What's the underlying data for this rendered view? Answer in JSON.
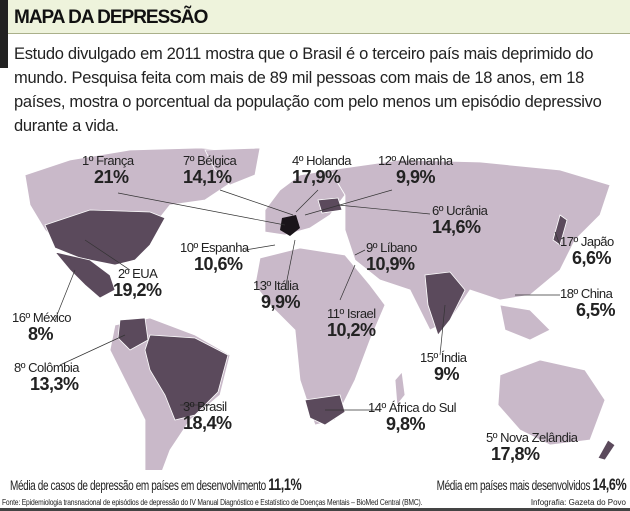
{
  "header": {
    "title": "MAPA DA DEPRESSÃO"
  },
  "intro": "Estudo divulgado em 2011 mostra que o Brasil é o terceiro país mais deprimido do mundo. Pesquisa feita com mais de 89 mil pessoas com mais de 18 anos, em 18 países, mostra o porcentual da população com pelo menos um episódio depressivo durante a vida.",
  "colors": {
    "header_bg": "#eef3dc",
    "land": "#c9b9c9",
    "highlight": "#5b4a5c",
    "france": "#1a141a"
  },
  "countries": [
    {
      "rank": "1º",
      "name": "França",
      "value": "21%"
    },
    {
      "rank": "2º",
      "name": "EUA",
      "value": "19,2%"
    },
    {
      "rank": "3º",
      "name": "Brasil",
      "value": "18,4%"
    },
    {
      "rank": "4º",
      "name": "Holanda",
      "value": "17,9%"
    },
    {
      "rank": "5º",
      "name": "Nova Zelândia",
      "value": "17,8%"
    },
    {
      "rank": "6º",
      "name": "Ucrânia",
      "value": "14,6%"
    },
    {
      "rank": "7º",
      "name": "Bélgica",
      "value": "14,1%"
    },
    {
      "rank": "8º",
      "name": "Colômbia",
      "value": "13,3%"
    },
    {
      "rank": "9º",
      "name": "Líbano",
      "value": "10,9%"
    },
    {
      "rank": "10º",
      "name": "Espanha",
      "value": "10,6%"
    },
    {
      "rank": "11º",
      "name": "Israel",
      "value": "10,2%"
    },
    {
      "rank": "12º",
      "name": "Alemanha",
      "value": "9,9%"
    },
    {
      "rank": "13º",
      "name": "Itália",
      "value": "9,9%"
    },
    {
      "rank": "14º",
      "name": "África do Sul",
      "value": "9,8%"
    },
    {
      "rank": "15º",
      "name": "Índia",
      "value": "9%"
    },
    {
      "rank": "16º",
      "name": "México",
      "value": "8%"
    },
    {
      "rank": "17º",
      "name": "Japão",
      "value": "6,6%"
    },
    {
      "rank": "18º",
      "name": "China",
      "value": "6,5%"
    }
  ],
  "averages": {
    "developing_label": "Média de casos de depressão em países em desenvolvimento",
    "developing_value": "11,1%",
    "developed_label": "Média em países mais desenvolvidos",
    "developed_value": "14,6%"
  },
  "footer": {
    "source": "Fonte: Epidemiologia transnacional de episódios de depressão do IV Manual Diagnóstico e Estatístico de Doenças Mentais – BioMed Central (BMC).",
    "credit": "Infografia: Gazeta do Povo"
  }
}
